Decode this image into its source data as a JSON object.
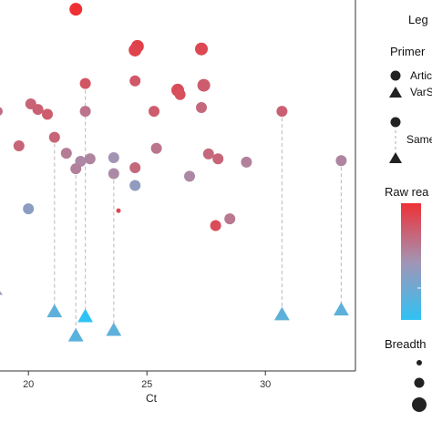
{
  "chart_data": {
    "type": "scatter",
    "xlabel": "Ct",
    "ylabel": "",
    "x_ticks": [
      "20",
      "25",
      "30"
    ],
    "xlim": [
      18.8,
      33.8
    ],
    "ylim": [
      0,
      1
    ],
    "grid": false,
    "color_scale": {
      "low": "#2fc2f4",
      "mid": "#a394b4",
      "high": "#ee3035",
      "min": 0,
      "max": 1
    },
    "legend": {
      "title": "Leg",
      "primer_title": "Primer",
      "primer_items": [
        {
          "shape": "circle",
          "label": "Artic"
        },
        {
          "shape": "triangle",
          "label": "VarS"
        }
      ],
      "same_label": "Same",
      "color_title": "Raw rea",
      "size_title": "Breadth"
    },
    "artic_points": [
      {
        "x": 22.0,
        "y": 0.975,
        "c": 1.0,
        "s": 7
      },
      {
        "x": 24.6,
        "y": 0.875,
        "c": 0.92,
        "s": 7
      },
      {
        "x": 24.5,
        "y": 0.865,
        "c": 0.9,
        "s": 7
      },
      {
        "x": 27.3,
        "y": 0.868,
        "c": 0.88,
        "s": 7
      },
      {
        "x": 27.4,
        "y": 0.77,
        "c": 0.78,
        "s": 7
      },
      {
        "x": 22.4,
        "y": 0.775,
        "c": 0.82,
        "s": 6
      },
      {
        "x": 24.5,
        "y": 0.782,
        "c": 0.8,
        "s": 6
      },
      {
        "x": 26.3,
        "y": 0.757,
        "c": 0.86,
        "s": 7
      },
      {
        "x": 26.4,
        "y": 0.745,
        "c": 0.84,
        "s": 6
      },
      {
        "x": 20.1,
        "y": 0.72,
        "c": 0.74,
        "s": 6
      },
      {
        "x": 20.4,
        "y": 0.705,
        "c": 0.76,
        "s": 6
      },
      {
        "x": 20.8,
        "y": 0.692,
        "c": 0.78,
        "s": 6
      },
      {
        "x": 22.4,
        "y": 0.7,
        "c": 0.66,
        "s": 6
      },
      {
        "x": 25.3,
        "y": 0.7,
        "c": 0.78,
        "s": 6
      },
      {
        "x": 27.3,
        "y": 0.71,
        "c": 0.72,
        "s": 6
      },
      {
        "x": 30.7,
        "y": 0.7,
        "c": 0.76,
        "s": 6
      },
      {
        "x": 21.1,
        "y": 0.63,
        "c": 0.74,
        "s": 6
      },
      {
        "x": 19.6,
        "y": 0.607,
        "c": 0.74,
        "s": 6
      },
      {
        "x": 25.4,
        "y": 0.6,
        "c": 0.66,
        "s": 6
      },
      {
        "x": 21.6,
        "y": 0.587,
        "c": 0.62,
        "s": 6
      },
      {
        "x": 27.6,
        "y": 0.585,
        "c": 0.72,
        "s": 6
      },
      {
        "x": 28.0,
        "y": 0.572,
        "c": 0.74,
        "s": 6
      },
      {
        "x": 22.2,
        "y": 0.565,
        "c": 0.56,
        "s": 6
      },
      {
        "x": 22.6,
        "y": 0.572,
        "c": 0.58,
        "s": 6
      },
      {
        "x": 23.6,
        "y": 0.575,
        "c": 0.5,
        "s": 6
      },
      {
        "x": 29.2,
        "y": 0.563,
        "c": 0.6,
        "s": 6
      },
      {
        "x": 33.2,
        "y": 0.567,
        "c": 0.58,
        "s": 6
      },
      {
        "x": 22.0,
        "y": 0.545,
        "c": 0.6,
        "s": 6
      },
      {
        "x": 24.5,
        "y": 0.548,
        "c": 0.72,
        "s": 6
      },
      {
        "x": 23.6,
        "y": 0.532,
        "c": 0.55,
        "s": 6
      },
      {
        "x": 26.8,
        "y": 0.525,
        "c": 0.56,
        "s": 6
      },
      {
        "x": 24.5,
        "y": 0.5,
        "c": 0.42,
        "s": 6
      },
      {
        "x": 20.0,
        "y": 0.437,
        "c": 0.4,
        "s": 6
      },
      {
        "x": 23.8,
        "y": 0.432,
        "c": 0.9,
        "s": 2.5
      },
      {
        "x": 28.5,
        "y": 0.41,
        "c": 0.64,
        "s": 6
      },
      {
        "x": 27.9,
        "y": 0.392,
        "c": 0.86,
        "s": 6
      }
    ],
    "varskip_points": [
      {
        "x": 21.1,
        "y": 0.16,
        "c": 0.2,
        "s": 7
      },
      {
        "x": 22.4,
        "y": 0.147,
        "c": 0.0,
        "s": 7
      },
      {
        "x": 22.0,
        "y": 0.095,
        "c": 0.18,
        "s": 7
      },
      {
        "x": 23.6,
        "y": 0.11,
        "c": 0.2,
        "s": 7
      },
      {
        "x": 30.7,
        "y": 0.152,
        "c": 0.2,
        "s": 7
      },
      {
        "x": 33.2,
        "y": 0.165,
        "c": 0.2,
        "s": 7
      }
    ],
    "pair_links": [
      {
        "x": 21.1,
        "y_top": 0.63,
        "y_bottom": 0.16
      },
      {
        "x": 22.0,
        "y_top": 0.545,
        "y_bottom": 0.095
      },
      {
        "x": 22.4,
        "y_top": 0.775,
        "y_bottom": 0.147
      },
      {
        "x": 23.6,
        "y_top": 0.532,
        "y_bottom": 0.11
      },
      {
        "x": 30.7,
        "y_top": 0.7,
        "y_bottom": 0.152
      },
      {
        "x": 33.2,
        "y_top": 0.567,
        "y_bottom": 0.165
      }
    ],
    "edge_marks": [
      {
        "shape": "circle",
        "y": 0.7
      },
      {
        "shape": "triangle",
        "y": 0.22
      }
    ]
  }
}
